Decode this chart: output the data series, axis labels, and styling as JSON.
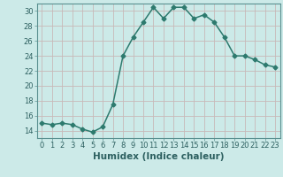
{
  "x": [
    0,
    1,
    2,
    3,
    4,
    5,
    6,
    7,
    8,
    9,
    10,
    11,
    12,
    13,
    14,
    15,
    16,
    17,
    18,
    19,
    20,
    21,
    22,
    23
  ],
  "y": [
    15.0,
    14.8,
    15.0,
    14.8,
    14.2,
    13.8,
    14.5,
    17.5,
    24.0,
    26.5,
    28.5,
    30.5,
    29.0,
    30.5,
    30.5,
    29.0,
    29.5,
    28.5,
    26.5,
    24.0,
    24.0,
    23.5,
    22.8,
    22.5
  ],
  "line_color": "#2d7a6e",
  "bg_color": "#cceae8",
  "grid_color": "#c8b8b8",
  "xlabel": "Humidex (Indice chaleur)",
  "xlim": [
    -0.5,
    23.5
  ],
  "ylim": [
    13,
    31
  ],
  "yticks": [
    14,
    16,
    18,
    20,
    22,
    24,
    26,
    28,
    30
  ],
  "xticks": [
    0,
    1,
    2,
    3,
    4,
    5,
    6,
    7,
    8,
    9,
    10,
    11,
    12,
    13,
    14,
    15,
    16,
    17,
    18,
    19,
    20,
    21,
    22,
    23
  ],
  "xtick_labels": [
    "0",
    "1",
    "2",
    "3",
    "4",
    "5",
    "6",
    "7",
    "8",
    "9",
    "10",
    "11",
    "12",
    "13",
    "14",
    "15",
    "16",
    "17",
    "18",
    "19",
    "20",
    "21",
    "22",
    "23"
  ],
  "xlabel_fontsize": 7.5,
  "tick_fontsize": 6.0,
  "marker": "D",
  "marker_size": 2.5,
  "line_width": 1.1,
  "tick_color": "#2d6060",
  "label_color": "#2d6060"
}
